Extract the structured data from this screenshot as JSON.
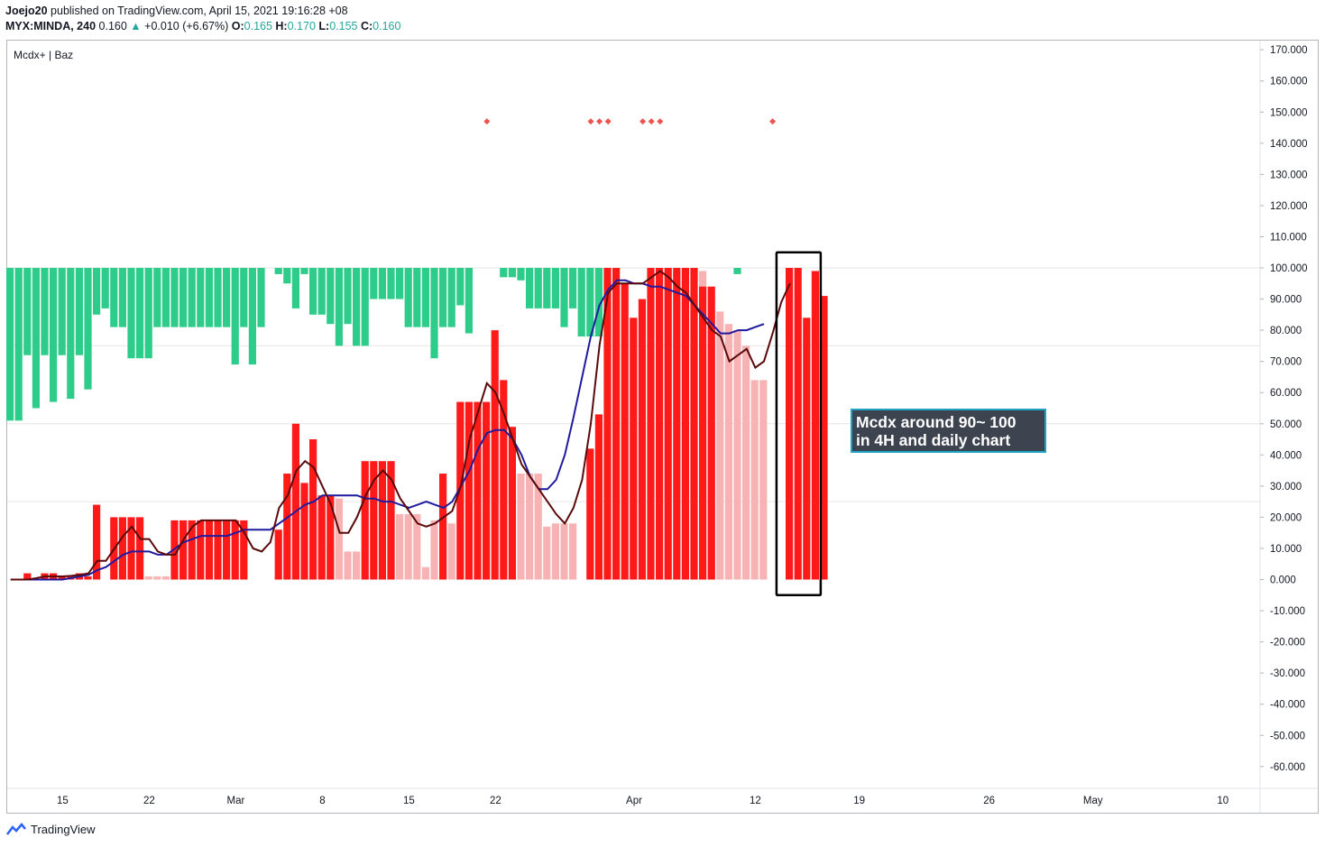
{
  "header": {
    "publisher": "Joejo20",
    "published_text": "published on TradingView.com, April 15, 2021 19:16:28 +08",
    "symbol": "MYX:MINDA, 240",
    "last": "0.160",
    "change_arrow": "▲",
    "change": "+0.010 (+6.67%)",
    "o_label": "O:",
    "o_value": "0.165",
    "h_label": "H:",
    "h_value": "0.170",
    "l_label": "L:",
    "l_value": "0.155",
    "c_label": "C:",
    "c_value": "0.160"
  },
  "indicator_label": "Mcdx+ | Baz",
  "annotation": {
    "line1": "Mcdx around 90~ 100",
    "line2": "in 4H and daily chart"
  },
  "footer": {
    "brand": "TradingView",
    "logo_icon": "tradingview-logo-icon"
  },
  "colors": {
    "green": "#2ecc8a",
    "red": "#ff1a1a",
    "pink": "#f7b3b3",
    "dark_line": "#5a0a0a",
    "blue_line": "#1f1a9e",
    "marker": "#ef5350",
    "annotation_bg": "#3d4450",
    "annotation_border": "#1fa3c4"
  },
  "chart_data": {
    "type": "bar",
    "title": "Mcdx+ | Baz",
    "ylim": [
      -65,
      175
    ],
    "y_ticks": [
      "170.000",
      "160.000",
      "150.000",
      "140.000",
      "130.000",
      "120.000",
      "110.000",
      "100.000",
      "90.000",
      "80.000",
      "70.000",
      "60.000",
      "50.000",
      "40.000",
      "30.000",
      "20.000",
      "10.000",
      "0.000",
      "-10.000",
      "-20.000",
      "-30.000",
      "-40.000",
      "-50.000",
      "-60.000"
    ],
    "y_tick_values": [
      170,
      160,
      150,
      140,
      130,
      120,
      110,
      100,
      90,
      80,
      70,
      60,
      50,
      40,
      30,
      20,
      10,
      0,
      -10,
      -20,
      -30,
      -40,
      -50,
      -60
    ],
    "x_ticks": [
      {
        "label": "15",
        "bar": 6.5
      },
      {
        "label": "22",
        "bar": 16.5
      },
      {
        "label": "Mar",
        "bar": 26.5
      },
      {
        "label": "8",
        "bar": 36.5
      },
      {
        "label": "15",
        "bar": 46.5
      },
      {
        "label": "22",
        "bar": 56.5
      },
      {
        "label": "Apr",
        "bar": 72.5
      },
      {
        "label": "12",
        "bar": 86.5
      },
      {
        "label": "19",
        "bar": 98.5
      },
      {
        "label": "26",
        "bar": 113.5
      },
      {
        "label": "May",
        "bar": 125.5
      },
      {
        "label": "10",
        "bar": 140.5
      }
    ],
    "bar_count": 94,
    "green_bottom": [
      51,
      51,
      72,
      55,
      72,
      57,
      72,
      58,
      72,
      61,
      85,
      87,
      81,
      81,
      71,
      71,
      71,
      81,
      81,
      81,
      81,
      81,
      81,
      81,
      81,
      81,
      69,
      81,
      69,
      81,
      100,
      98,
      95,
      87,
      98,
      85,
      85,
      82,
      75,
      82,
      75,
      75,
      90,
      90,
      90,
      90,
      81,
      81,
      81,
      71,
      81,
      81,
      88,
      79
    ],
    "green_extra": [
      {
        "bar": 84,
        "bottom": 98
      }
    ],
    "green_late": {
      "start": 57,
      "values": [
        97,
        97,
        96,
        87,
        87,
        87,
        87,
        81,
        87,
        78,
        78,
        78,
        100,
        98
      ]
    },
    "red": [
      0,
      0,
      2,
      0,
      2,
      2,
      1,
      1,
      2,
      1,
      24,
      0,
      20,
      20,
      20,
      20,
      0,
      0,
      0,
      19,
      19,
      19,
      19,
      19,
      19,
      19,
      19,
      19,
      0,
      0,
      0,
      16,
      34,
      50,
      31,
      45,
      27,
      27,
      0,
      0,
      0,
      38,
      38,
      38,
      38,
      0,
      0,
      0,
      0,
      0,
      34,
      0,
      57,
      57,
      57,
      57,
      80,
      64,
      49,
      0,
      0,
      0,
      0,
      0,
      0,
      0,
      0,
      42,
      53,
      100,
      100,
      95,
      84,
      90,
      100,
      100,
      100,
      100,
      100,
      100,
      94,
      94,
      0,
      0,
      0,
      0,
      0,
      0,
      0,
      0,
      100,
      100,
      84,
      99,
      91
    ],
    "pink": [
      0,
      0,
      0,
      0,
      0,
      0,
      0,
      0,
      0,
      0,
      0,
      0,
      0,
      0,
      0,
      1,
      1,
      1,
      1,
      0,
      0,
      0,
      0,
      0,
      0,
      0,
      0,
      0,
      0,
      0,
      0,
      0,
      0,
      0,
      0,
      0,
      0,
      10,
      26,
      9,
      9,
      0,
      0,
      0,
      0,
      21,
      21,
      21,
      4,
      19,
      19,
      18,
      0,
      0,
      0,
      0,
      0,
      0,
      0,
      34,
      34,
      34,
      17,
      18,
      18,
      18,
      0,
      0,
      0,
      0,
      0,
      0,
      0,
      0,
      0,
      0,
      0,
      0,
      96,
      90,
      99,
      86,
      86,
      82,
      80,
      75,
      64,
      64,
      0,
      0,
      0,
      0,
      0
    ],
    "dark_line": [
      0,
      0,
      0,
      0.5,
      1,
      1,
      1,
      1.2,
      1.5,
      2,
      6,
      6,
      10,
      14,
      17,
      13,
      13,
      9,
      8,
      8,
      13,
      17,
      19,
      19,
      19,
      19,
      19,
      15,
      10,
      9,
      12,
      23,
      27,
      35,
      38,
      36,
      30,
      24,
      15,
      15,
      20,
      27,
      32,
      35,
      32,
      26,
      22,
      18,
      17,
      18,
      20,
      22,
      30,
      45,
      54,
      63,
      60,
      53,
      45,
      37,
      33,
      29,
      25,
      21,
      18,
      23,
      32,
      50,
      75,
      92,
      95,
      95,
      95,
      95,
      97,
      99,
      97,
      94,
      92,
      88,
      84,
      80,
      78,
      70,
      72,
      74,
      68,
      70,
      79,
      89,
      95
    ],
    "blue_line": [
      0,
      0,
      0,
      0,
      0,
      0,
      0,
      0.5,
      1,
      1.5,
      3,
      4,
      6,
      8,
      9,
      9,
      9,
      8,
      8,
      10,
      12,
      13,
      14,
      14,
      14,
      14,
      15,
      16,
      16,
      16,
      16,
      18,
      20,
      22,
      24,
      25,
      27,
      27,
      27,
      27,
      27,
      26,
      26,
      25,
      25,
      24,
      23,
      24,
      25,
      24,
      23,
      25,
      30,
      35,
      42,
      47,
      48,
      48,
      45,
      40,
      33,
      29,
      29,
      32,
      40,
      52,
      65,
      78,
      88,
      93,
      96,
      96,
      95,
      95,
      94,
      94,
      93,
      92,
      91,
      88,
      85,
      82,
      79,
      79,
      80,
      80,
      81,
      82
    ],
    "markers": [
      {
        "bar": 55,
        "value": 147
      },
      {
        "bar": 67,
        "value": 147
      },
      {
        "bar": 68,
        "value": 147
      },
      {
        "bar": 69,
        "value": 147
      },
      {
        "bar": 73,
        "value": 147
      },
      {
        "bar": 74,
        "value": 147
      },
      {
        "bar": 75,
        "value": 147
      },
      {
        "bar": 88,
        "value": 147
      }
    ],
    "highlight_box": {
      "bar_start": 89,
      "bar_end": 93,
      "y_top": 105,
      "y_bottom": -5
    }
  }
}
